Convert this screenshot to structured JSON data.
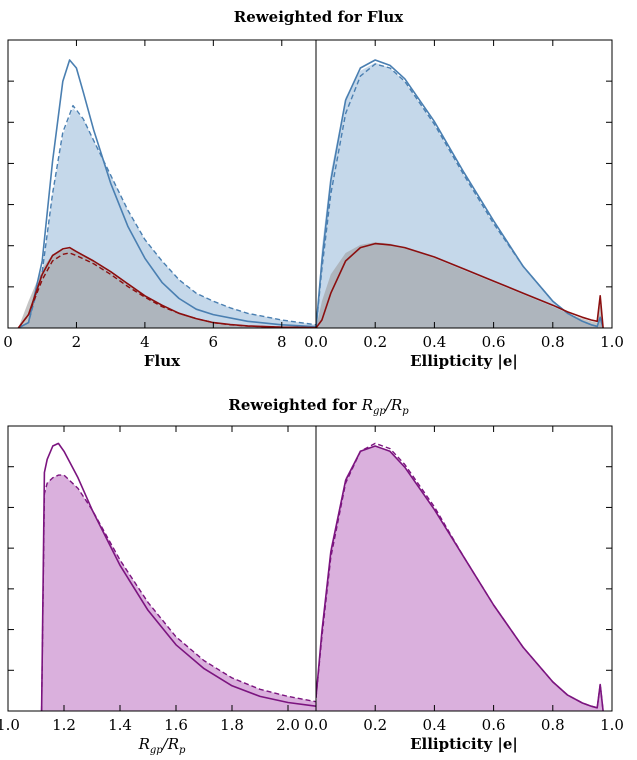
{
  "titles": {
    "top_prefix": "Reweighted for Flux",
    "bottom_prefix": "Reweighted for ",
    "bottom_var": "R_gp/R_p"
  },
  "colors": {
    "blue_line": "#4a7fb1",
    "blue_fill": "#c5d8ea",
    "red_line": "#8b0f0f",
    "red_fill": "#a5909a",
    "gray_fill": "#9e9e9e",
    "purple_line": "#7b147f",
    "purple_fill": "#dab0dd"
  },
  "chart_data": [
    {
      "type": "line",
      "panel": "top-left",
      "xlabel": "Flux",
      "xlim": [
        0,
        9
      ],
      "ylim": [
        0,
        1
      ],
      "x_ticks": [
        "0",
        "2",
        "4",
        "6",
        "8"
      ],
      "series": [
        {
          "role": "blue-solid",
          "x": [
            0.3,
            0.6,
            1.0,
            1.3,
            1.6,
            1.8,
            2.0,
            2.2,
            2.5,
            3.0,
            3.5,
            4.0,
            4.5,
            5.0,
            5.5,
            6.0,
            7.0,
            8.0,
            9.0
          ],
          "y": [
            0.0,
            0.02,
            0.25,
            0.62,
            0.92,
            1.0,
            0.97,
            0.88,
            0.74,
            0.54,
            0.38,
            0.26,
            0.17,
            0.11,
            0.07,
            0.05,
            0.025,
            0.012,
            0.005
          ]
        },
        {
          "role": "blue-dashed",
          "x": [
            0.3,
            0.6,
            1.0,
            1.3,
            1.6,
            1.9,
            2.2,
            2.5,
            3.0,
            3.5,
            4.0,
            4.5,
            5.0,
            5.5,
            6.0,
            6.5,
            7.0,
            8.0,
            9.0
          ],
          "y": [
            0.0,
            0.02,
            0.21,
            0.5,
            0.73,
            0.83,
            0.78,
            0.7,
            0.57,
            0.44,
            0.33,
            0.25,
            0.18,
            0.13,
            0.1,
            0.075,
            0.055,
            0.03,
            0.012
          ]
        },
        {
          "role": "blue-fill",
          "x": [
            0.3,
            0.6,
            1.0,
            1.3,
            1.6,
            1.9,
            2.2,
            2.5,
            3.0,
            3.5,
            4.0,
            4.5,
            5.0,
            5.5,
            6.0,
            6.5,
            7.0,
            8.0,
            9.0
          ],
          "y": [
            0.0,
            0.02,
            0.21,
            0.5,
            0.72,
            0.82,
            0.78,
            0.7,
            0.57,
            0.44,
            0.33,
            0.25,
            0.18,
            0.13,
            0.1,
            0.075,
            0.055,
            0.03,
            0.012
          ]
        },
        {
          "role": "red-solid",
          "x": [
            0.3,
            0.6,
            1.0,
            1.3,
            1.6,
            1.8,
            2.0,
            2.5,
            3.0,
            3.5,
            4.0,
            4.5,
            5.0,
            5.5,
            6.0,
            6.5,
            7.0,
            8.0,
            9.0
          ],
          "y": [
            0.0,
            0.05,
            0.2,
            0.27,
            0.295,
            0.3,
            0.285,
            0.25,
            0.21,
            0.165,
            0.12,
            0.085,
            0.055,
            0.035,
            0.02,
            0.013,
            0.008,
            0.003,
            0.001
          ]
        },
        {
          "role": "red-dashed",
          "x": [
            0.3,
            0.6,
            1.0,
            1.3,
            1.6,
            1.8,
            2.0,
            2.5,
            3.0,
            3.5,
            4.0,
            4.5,
            5.0,
            5.5,
            6.0,
            6.5,
            7.0,
            8.0,
            9.0
          ],
          "y": [
            0.0,
            0.05,
            0.18,
            0.25,
            0.275,
            0.28,
            0.27,
            0.24,
            0.2,
            0.155,
            0.115,
            0.08,
            0.055,
            0.035,
            0.02,
            0.012,
            0.007,
            0.003,
            0.001
          ]
        },
        {
          "role": "gray-fill",
          "x": [
            0.3,
            0.6,
            1.0,
            1.3,
            1.6,
            1.8,
            2.0,
            2.5,
            3.0,
            3.5,
            4.0,
            4.5,
            5.0,
            5.5,
            6.0,
            6.5,
            7.0,
            8.0,
            9.0
          ],
          "y": [
            0.0,
            0.1,
            0.22,
            0.275,
            0.29,
            0.295,
            0.285,
            0.25,
            0.205,
            0.16,
            0.118,
            0.082,
            0.055,
            0.035,
            0.02,
            0.012,
            0.007,
            0.003,
            0.001
          ]
        }
      ]
    },
    {
      "type": "line",
      "panel": "top-right",
      "xlabel": "Ellipticity |e|",
      "xlim": [
        0,
        1
      ],
      "ylim": [
        0,
        1
      ],
      "x_ticks": [
        "0.0",
        "0.2",
        "0.4",
        "0.6",
        "0.8",
        "1.0"
      ],
      "series": [
        {
          "role": "blue-solid",
          "x": [
            0.0,
            0.02,
            0.05,
            0.1,
            0.15,
            0.2,
            0.25,
            0.3,
            0.4,
            0.5,
            0.6,
            0.7,
            0.8,
            0.85,
            0.9,
            0.93,
            0.95,
            0.96,
            0.97
          ],
          "y": [
            0.0,
            0.25,
            0.55,
            0.85,
            0.97,
            1.0,
            0.98,
            0.93,
            0.77,
            0.58,
            0.4,
            0.23,
            0.1,
            0.055,
            0.025,
            0.012,
            0.006,
            0.04,
            0.0
          ]
        },
        {
          "role": "blue-dashed",
          "x": [
            0.0,
            0.02,
            0.05,
            0.1,
            0.15,
            0.2,
            0.25,
            0.3,
            0.4,
            0.5,
            0.6,
            0.7,
            0.8,
            0.85,
            0.9,
            0.93,
            0.95,
            0.96,
            0.97
          ],
          "y": [
            0.0,
            0.22,
            0.5,
            0.8,
            0.94,
            0.985,
            0.97,
            0.92,
            0.76,
            0.57,
            0.39,
            0.23,
            0.1,
            0.055,
            0.025,
            0.012,
            0.006,
            0.04,
            0.0
          ]
        },
        {
          "role": "blue-fill",
          "x": [
            0.0,
            0.02,
            0.05,
            0.1,
            0.15,
            0.2,
            0.25,
            0.3,
            0.4,
            0.5,
            0.6,
            0.7,
            0.8,
            0.85,
            0.9,
            0.93,
            0.95,
            0.96,
            0.97
          ],
          "y": [
            0.0,
            0.3,
            0.58,
            0.86,
            0.96,
            0.99,
            0.97,
            0.92,
            0.76,
            0.57,
            0.39,
            0.23,
            0.1,
            0.055,
            0.025,
            0.012,
            0.006,
            0.04,
            0.0
          ]
        },
        {
          "role": "red-solid",
          "x": [
            0.0,
            0.02,
            0.05,
            0.1,
            0.15,
            0.2,
            0.25,
            0.3,
            0.4,
            0.5,
            0.6,
            0.7,
            0.8,
            0.85,
            0.9,
            0.93,
            0.95,
            0.96,
            0.97
          ],
          "y": [
            0.0,
            0.03,
            0.13,
            0.25,
            0.3,
            0.315,
            0.31,
            0.3,
            0.265,
            0.22,
            0.175,
            0.13,
            0.085,
            0.06,
            0.04,
            0.03,
            0.025,
            0.12,
            0.0
          ]
        },
        {
          "role": "gray-fill",
          "x": [
            0.0,
            0.02,
            0.05,
            0.1,
            0.15,
            0.2,
            0.25,
            0.3,
            0.4,
            0.5,
            0.6,
            0.7,
            0.8,
            0.85,
            0.9,
            0.93,
            0.95,
            0.96,
            0.97
          ],
          "y": [
            0.0,
            0.1,
            0.2,
            0.28,
            0.31,
            0.32,
            0.315,
            0.3,
            0.26,
            0.215,
            0.17,
            0.125,
            0.08,
            0.055,
            0.035,
            0.025,
            0.02,
            0.09,
            0.0
          ]
        }
      ]
    },
    {
      "type": "line",
      "panel": "bottom-left",
      "xlabel": "R_gp/R_p",
      "xlim": [
        1.0,
        2.1
      ],
      "ylim": [
        0,
        1
      ],
      "x_ticks": [
        "1.0",
        "1.2",
        "1.4",
        "1.6",
        "1.8",
        "2.0"
      ],
      "series": [
        {
          "role": "purple-solid",
          "x": [
            1.12,
            1.13,
            1.14,
            1.16,
            1.18,
            1.2,
            1.25,
            1.3,
            1.4,
            1.5,
            1.6,
            1.7,
            1.8,
            1.9,
            2.0,
            2.1
          ],
          "y": [
            0.0,
            0.9,
            0.95,
            1.0,
            1.01,
            0.98,
            0.88,
            0.76,
            0.55,
            0.38,
            0.25,
            0.16,
            0.095,
            0.055,
            0.032,
            0.018
          ]
        },
        {
          "role": "purple-dashed",
          "x": [
            1.12,
            1.13,
            1.14,
            1.16,
            1.18,
            1.2,
            1.25,
            1.3,
            1.4,
            1.5,
            1.6,
            1.7,
            1.8,
            1.9,
            2.0,
            2.1
          ],
          "y": [
            0.0,
            0.82,
            0.86,
            0.88,
            0.89,
            0.89,
            0.84,
            0.76,
            0.57,
            0.41,
            0.28,
            0.19,
            0.125,
            0.082,
            0.055,
            0.035
          ]
        },
        {
          "role": "purple-fill",
          "x": [
            1.12,
            1.13,
            1.14,
            1.16,
            1.18,
            1.2,
            1.25,
            1.3,
            1.4,
            1.5,
            1.6,
            1.7,
            1.8,
            1.9,
            2.0,
            2.1
          ],
          "y": [
            0.0,
            0.82,
            0.86,
            0.88,
            0.89,
            0.89,
            0.84,
            0.76,
            0.57,
            0.41,
            0.28,
            0.19,
            0.125,
            0.082,
            0.055,
            0.035
          ]
        }
      ]
    },
    {
      "type": "line",
      "panel": "bottom-right",
      "xlabel": "Ellipticity |e|",
      "xlim": [
        0,
        1
      ],
      "ylim": [
        0,
        1
      ],
      "x_ticks": [
        "0.0",
        "0.2",
        "0.4",
        "0.6",
        "0.8",
        "1.0"
      ],
      "series": [
        {
          "role": "purple-solid",
          "x": [
            0.0,
            0.02,
            0.05,
            0.1,
            0.15,
            0.2,
            0.25,
            0.3,
            0.4,
            0.5,
            0.6,
            0.7,
            0.8,
            0.85,
            0.9,
            0.93,
            0.95,
            0.96,
            0.97
          ],
          "y": [
            0.05,
            0.3,
            0.6,
            0.87,
            0.98,
            1.0,
            0.98,
            0.92,
            0.76,
            0.58,
            0.4,
            0.24,
            0.11,
            0.06,
            0.03,
            0.018,
            0.012,
            0.1,
            0.0
          ]
        },
        {
          "role": "purple-dashed",
          "x": [
            0.0,
            0.02,
            0.05,
            0.1,
            0.15,
            0.2,
            0.25,
            0.3,
            0.4,
            0.5,
            0.6,
            0.7,
            0.8,
            0.85,
            0.9,
            0.93,
            0.95,
            0.96,
            0.97
          ],
          "y": [
            0.05,
            0.28,
            0.58,
            0.86,
            0.98,
            1.01,
            0.99,
            0.93,
            0.77,
            0.58,
            0.4,
            0.24,
            0.11,
            0.06,
            0.03,
            0.018,
            0.012,
            0.1,
            0.0
          ]
        },
        {
          "role": "purple-fill",
          "x": [
            0.0,
            0.02,
            0.05,
            0.1,
            0.15,
            0.2,
            0.25,
            0.3,
            0.4,
            0.5,
            0.6,
            0.7,
            0.8,
            0.85,
            0.9,
            0.93,
            0.95,
            0.96,
            0.97
          ],
          "y": [
            0.0,
            0.32,
            0.62,
            0.88,
            0.98,
            1.0,
            0.98,
            0.92,
            0.76,
            0.58,
            0.4,
            0.24,
            0.11,
            0.06,
            0.03,
            0.018,
            0.012,
            0.1,
            0.0
          ]
        }
      ]
    }
  ]
}
